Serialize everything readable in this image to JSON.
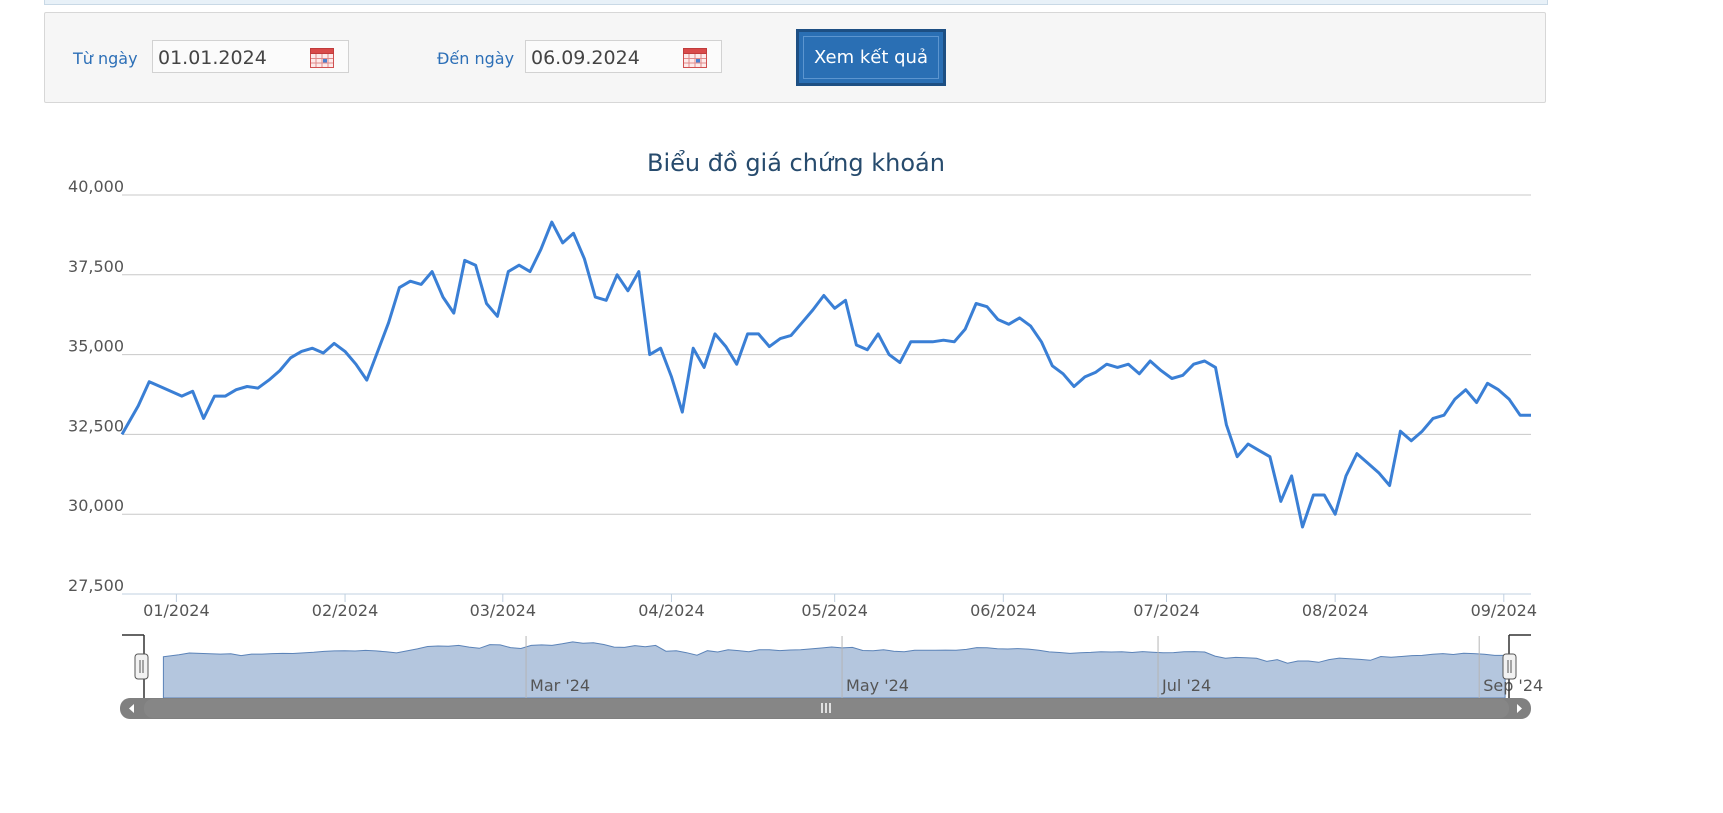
{
  "filter": {
    "from_label": "Từ ngày",
    "from_value": "01.01.2024",
    "to_label": "Đến ngày",
    "to_value": "06.09.2024",
    "submit_label": "Xem kết quả"
  },
  "colors": {
    "line": "#3a7fd5",
    "navigator_fill": "#b4c6de",
    "scrollbar": "#808080",
    "button": "#2a6fb4"
  },
  "chart_data": {
    "type": "line",
    "title": "Biểu đồ giá chứng khoán",
    "ylim": [
      27500,
      40000
    ],
    "yticks": [
      "27,500",
      "30,000",
      "32,500",
      "35,000",
      "37,500",
      "40,000"
    ],
    "ytick_values": [
      27500,
      30000,
      32500,
      35000,
      37500,
      40000
    ],
    "xticks": [
      "01/2024",
      "02/2024",
      "03/2024",
      "04/2024",
      "05/2024",
      "06/2024",
      "07/2024",
      "08/2024",
      "09/2024"
    ],
    "navigator_ticks": [
      "Mar '24",
      "May '24",
      "Jul '24",
      "Sep '24"
    ],
    "grid": true,
    "legend": "none",
    "x_start": "2023-12-22",
    "x_end": "2024-09-06",
    "series": [
      {
        "name": "",
        "x": [
          "2023-12-22",
          "2023-12-25",
          "2023-12-27",
          "2023-12-29",
          "2024-01-02",
          "2024-01-04",
          "2024-01-06",
          "2024-01-08",
          "2024-01-10",
          "2024-01-12",
          "2024-01-14",
          "2024-01-16",
          "2024-01-18",
          "2024-01-20",
          "2024-01-22",
          "2024-01-24",
          "2024-01-26",
          "2024-01-28",
          "2024-01-30",
          "2024-02-01",
          "2024-02-03",
          "2024-02-05",
          "2024-02-07",
          "2024-02-09",
          "2024-02-11",
          "2024-02-13",
          "2024-02-15",
          "2024-02-17",
          "2024-02-19",
          "2024-02-21",
          "2024-02-23",
          "2024-02-25",
          "2024-02-27",
          "2024-02-29",
          "2024-03-02",
          "2024-03-04",
          "2024-03-06",
          "2024-03-08",
          "2024-03-10",
          "2024-03-12",
          "2024-03-14",
          "2024-03-16",
          "2024-03-18",
          "2024-03-20",
          "2024-03-22",
          "2024-03-24",
          "2024-03-26",
          "2024-03-28",
          "2024-03-30",
          "2024-04-01",
          "2024-04-03",
          "2024-04-05",
          "2024-04-07",
          "2024-04-09",
          "2024-04-11",
          "2024-04-13",
          "2024-04-15",
          "2024-04-17",
          "2024-04-19",
          "2024-04-21",
          "2024-04-23",
          "2024-04-25",
          "2024-04-27",
          "2024-04-29",
          "2024-05-01",
          "2024-05-03",
          "2024-05-05",
          "2024-05-07",
          "2024-05-09",
          "2024-05-11",
          "2024-05-13",
          "2024-05-15",
          "2024-05-17",
          "2024-05-19",
          "2024-05-21",
          "2024-05-23",
          "2024-05-25",
          "2024-05-27",
          "2024-05-29",
          "2024-05-31",
          "2024-06-02",
          "2024-06-04",
          "2024-06-06",
          "2024-06-08",
          "2024-06-10",
          "2024-06-12",
          "2024-06-14",
          "2024-06-16",
          "2024-06-18",
          "2024-06-20",
          "2024-06-22",
          "2024-06-24",
          "2024-06-26",
          "2024-06-28",
          "2024-06-30",
          "2024-07-02",
          "2024-07-04",
          "2024-07-06",
          "2024-07-08",
          "2024-07-10",
          "2024-07-12",
          "2024-07-14",
          "2024-07-16",
          "2024-07-18",
          "2024-07-20",
          "2024-07-22",
          "2024-07-24",
          "2024-07-26",
          "2024-07-28",
          "2024-07-30",
          "2024-08-01",
          "2024-08-03",
          "2024-08-05",
          "2024-08-07",
          "2024-08-09",
          "2024-08-11",
          "2024-08-13",
          "2024-08-15",
          "2024-08-17",
          "2024-08-19",
          "2024-08-21",
          "2024-08-23",
          "2024-08-25",
          "2024-08-27",
          "2024-08-29",
          "2024-08-31",
          "2024-09-02",
          "2024-09-04",
          "2024-09-06"
        ],
        "y": [
          32500,
          33400,
          34150,
          34000,
          33700,
          33850,
          33000,
          33700,
          33700,
          33900,
          34000,
          33950,
          34200,
          34500,
          34900,
          35100,
          35200,
          35050,
          35350,
          35100,
          34700,
          34200,
          35100,
          36000,
          37100,
          37300,
          37200,
          37600,
          36800,
          36300,
          37950,
          37800,
          36600,
          36200,
          37600,
          37800,
          37600,
          38300,
          39150,
          38500,
          38800,
          38000,
          36800,
          36700,
          37500,
          37000,
          37600,
          35000,
          35200,
          34300,
          33200,
          35200,
          34600,
          35650,
          35250,
          34700,
          35650,
          35650,
          35250,
          35500,
          35600,
          36000,
          36400,
          36850,
          36450,
          36700,
          35300,
          35150,
          35650,
          35000,
          34750,
          35400,
          35400,
          35400,
          35450,
          35400,
          35800,
          36600,
          36500,
          36100,
          35950,
          36150,
          35900,
          35400,
          34650,
          34400,
          34000,
          34300,
          34450,
          34700,
          34600,
          34700,
          34400,
          34800,
          34500,
          34250,
          34350,
          34700,
          34800,
          34600,
          32800,
          31800,
          32200,
          32000,
          31800,
          30400,
          31200,
          29600,
          30600,
          30600,
          30000,
          31200,
          31900,
          31600,
          31300,
          30900,
          32600,
          32300,
          32600,
          33000,
          33100,
          33600,
          33900,
          33500,
          34100,
          33900,
          33600,
          33100,
          33100
        ]
      }
    ]
  }
}
